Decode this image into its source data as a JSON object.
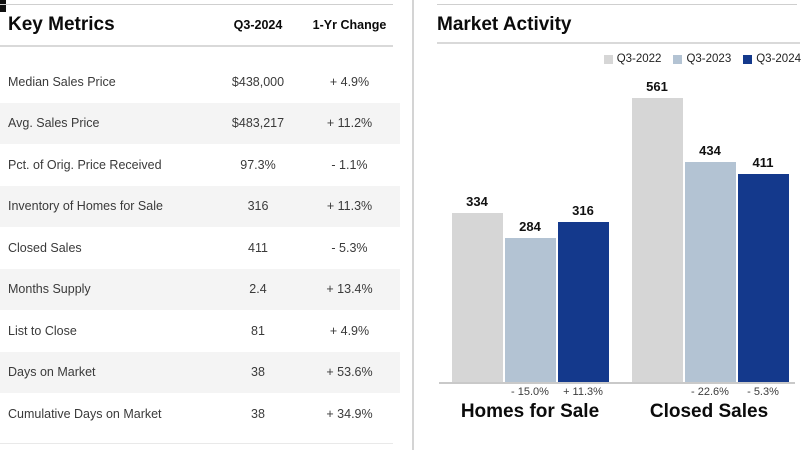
{
  "key_metrics": {
    "title": "Key Metrics",
    "columns": [
      "Q3-2024",
      "1-Yr Change"
    ],
    "rows": [
      {
        "metric": "Median Sales Price",
        "value": "$438,000",
        "change": "+ 4.9%"
      },
      {
        "metric": "Avg. Sales Price",
        "value": "$483,217",
        "change": "+ 11.2%"
      },
      {
        "metric": "Pct. of Orig. Price Received",
        "value": "97.3%",
        "change": "- 1.1%"
      },
      {
        "metric": "Inventory of Homes for Sale",
        "value": "316",
        "change": "+ 11.3%"
      },
      {
        "metric": "Closed Sales",
        "value": "411",
        "change": "- 5.3%"
      },
      {
        "metric": "Months Supply",
        "value": "2.4",
        "change": "+ 13.4%"
      },
      {
        "metric": "List to Close",
        "value": "81",
        "change": "+ 4.9%"
      },
      {
        "metric": "Days on Market",
        "value": "38",
        "change": "+ 53.6%"
      },
      {
        "metric": "Cumulative Days on Market",
        "value": "38",
        "change": "+ 34.9%"
      }
    ]
  },
  "market_activity": {
    "title": "Market Activity"
  },
  "chart_data": {
    "type": "bar",
    "title": "Market Activity",
    "categories": [
      "Homes for Sale",
      "Closed Sales"
    ],
    "series": [
      {
        "name": "Q3-2022",
        "color": "#d6d6d6",
        "values": [
          334,
          561
        ]
      },
      {
        "name": "Q3-2023",
        "color": "#b3c3d3",
        "values": [
          284,
          434
        ]
      },
      {
        "name": "Q3-2024",
        "color": "#14398c",
        "values": [
          316,
          411
        ]
      }
    ],
    "change_labels": [
      [
        "",
        "- 15.0%",
        "+ 11.3%"
      ],
      [
        "",
        "- 22.6%",
        "- 5.3%"
      ]
    ],
    "ylim": [
      0,
      600
    ],
    "grid": false,
    "legend_position": "top-right",
    "data_labels": true
  }
}
